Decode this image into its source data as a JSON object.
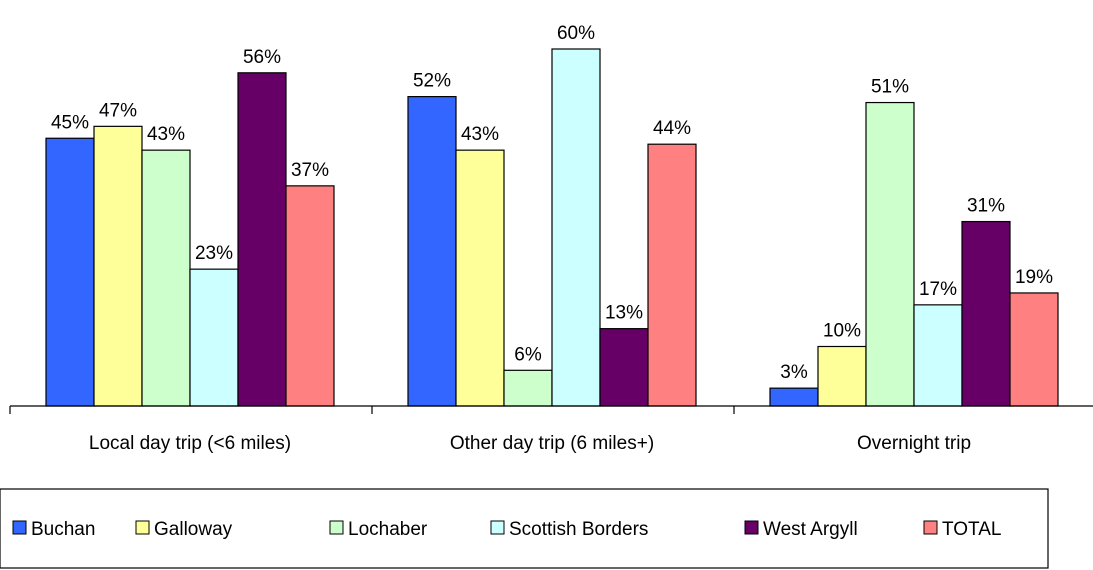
{
  "chart_data": {
    "type": "bar",
    "categories": [
      "Local day trip (<6 miles)",
      "Other day trip (6 miles+)",
      "Overnight trip"
    ],
    "series": [
      {
        "name": "Buchan",
        "values": [
          45,
          52,
          3
        ],
        "labels": [
          "45%",
          "52%",
          "3%"
        ],
        "color": "#3366FF"
      },
      {
        "name": "Galloway",
        "values": [
          47,
          43,
          10
        ],
        "labels": [
          "47%",
          "43%",
          "10%"
        ],
        "color": "#FFFF99"
      },
      {
        "name": "Lochaber",
        "values": [
          43,
          6,
          51
        ],
        "labels": [
          "43%",
          "6%",
          "51%"
        ],
        "color": "#CCFFCC"
      },
      {
        "name": "Scottish Borders",
        "values": [
          23,
          60,
          17
        ],
        "labels": [
          "23%",
          "60%",
          "17%"
        ],
        "color": "#CCFFFF"
      },
      {
        "name": "West Argyll",
        "values": [
          56,
          13,
          31
        ],
        "labels": [
          "56%",
          "13%",
          "31%"
        ],
        "color": "#660066"
      },
      {
        "name": "TOTAL",
        "values": [
          37,
          44,
          19
        ],
        "labels": [
          "37%",
          "44%",
          "19%"
        ],
        "color": "#FF8080"
      }
    ],
    "ylim": [
      0,
      60
    ],
    "grid": false,
    "legend_position": "bottom",
    "title": "",
    "xlabel": "",
    "ylabel": ""
  }
}
